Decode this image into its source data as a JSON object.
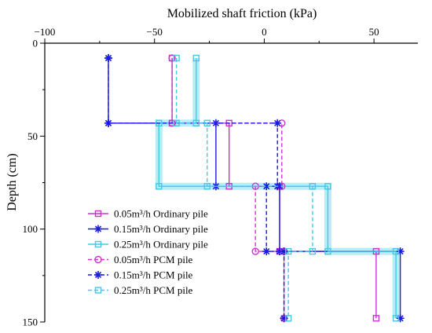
{
  "chart_data": {
    "type": "line",
    "xlabel": "Mobilized shaft friction (kPa)",
    "ylabel": "Depth (cm)",
    "xlim": [
      -100,
      70
    ],
    "ylim": [
      0,
      150
    ],
    "y_inverted": true,
    "x_axis_position": "top",
    "xticks": [
      -100,
      -50,
      0,
      50
    ],
    "yticks": [
      0,
      50,
      100,
      150
    ],
    "legend_position": "lower-left",
    "colors": {
      "magenta": "#cc33cc",
      "blue": "#1a1ae6",
      "cyan": "#44c8e6",
      "cyan_band": "#b8ecf6"
    },
    "series": [
      {
        "name": "0.05m³/h Ordinary pile",
        "color": "#cc33cc",
        "line": "solid",
        "marker": "square",
        "points": [
          [
            -42,
            8
          ],
          [
            -42,
            43
          ],
          [
            -16,
            43
          ],
          [
            -16,
            77
          ],
          [
            7,
            77
          ],
          [
            7,
            112
          ],
          [
            51,
            112
          ],
          [
            51,
            148
          ]
        ]
      },
      {
        "name": "0.15m³/h Ordinary pile",
        "color": "#1a1ae6",
        "line": "solid",
        "marker": "star",
        "points": [
          [
            -71,
            8
          ],
          [
            -71,
            43
          ],
          [
            -22,
            43
          ],
          [
            -22,
            77
          ],
          [
            7,
            77
          ],
          [
            7,
            112
          ],
          [
            62,
            112
          ],
          [
            62,
            148
          ]
        ]
      },
      {
        "name": "0.25m³/h Ordinary pile",
        "color": "#44c8e6",
        "line": "solid",
        "marker": "square",
        "band": true,
        "points": [
          [
            -31,
            8
          ],
          [
            -31,
            43
          ],
          [
            -48,
            43
          ],
          [
            -48,
            77
          ],
          [
            29,
            77
          ],
          [
            29,
            112
          ],
          [
            60,
            112
          ],
          [
            60,
            148
          ]
        ]
      },
      {
        "name": "0.05m³/h PCM pile",
        "color": "#cc33cc",
        "line": "dashed",
        "marker": "circle",
        "points": [
          [
            -42,
            8
          ],
          [
            -42,
            43
          ],
          [
            8,
            43
          ],
          [
            8,
            77
          ],
          [
            -4,
            77
          ],
          [
            -4,
            112
          ],
          [
            9,
            112
          ],
          [
            9,
            148
          ]
        ]
      },
      {
        "name": "0.15m³/h PCM pile",
        "color": "#1a1ae6",
        "line": "dashed",
        "marker": "star",
        "points": [
          [
            -71,
            8
          ],
          [
            -71,
            43
          ],
          [
            6,
            43
          ],
          [
            6,
            77
          ],
          [
            1,
            77
          ],
          [
            1,
            112
          ],
          [
            9,
            112
          ],
          [
            9,
            148
          ]
        ]
      },
      {
        "name": "0.25m³/h PCM pile",
        "color": "#44c8e6",
        "line": "dashed",
        "marker": "square",
        "points": [
          [
            -40,
            8
          ],
          [
            -40,
            43
          ],
          [
            -26,
            43
          ],
          [
            -26,
            77
          ],
          [
            22,
            77
          ],
          [
            22,
            112
          ],
          [
            11,
            112
          ],
          [
            11,
            148
          ]
        ]
      }
    ]
  }
}
